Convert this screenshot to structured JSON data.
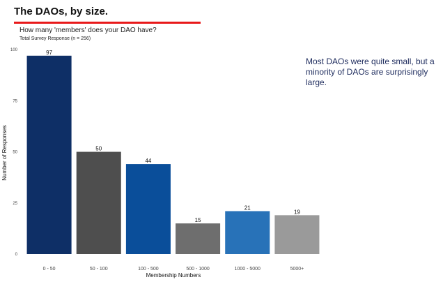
{
  "title": "The DAOs, by size.",
  "subtitle": "How many 'members' does your DAO have?",
  "caption": "Total Survey Response (n = 256)",
  "annotation": "Most DAOs were quite small, but a minority of DAOs are surprisingly large.",
  "colors": {
    "title_rule": "#e8191a",
    "bars": [
      "#0e2f66",
      "#4e4e4e",
      "#0a4e9a",
      "#6e6e6e",
      "#2872b8",
      "#9a9a9a"
    ]
  },
  "chart_data": {
    "type": "bar",
    "categories": [
      "0 - 50",
      "50 - 100",
      "100 - 500",
      "500 - 1000",
      "1000 - 5000",
      "5000+"
    ],
    "values": [
      97,
      50,
      44,
      15,
      21,
      19
    ],
    "xlabel": "Membership Numbers",
    "ylabel": "Number of Responses",
    "ylim": [
      0,
      100
    ],
    "yticks": [
      0,
      25,
      50,
      75,
      100
    ],
    "grid": false,
    "data_labels": true
  }
}
